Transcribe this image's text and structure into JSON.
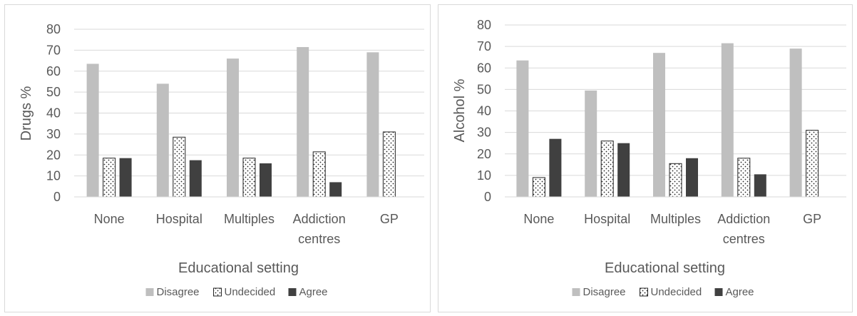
{
  "chart_data": [
    {
      "type": "bar",
      "categories": [
        [
          "None"
        ],
        [
          "Hospital"
        ],
        [
          "Multiples"
        ],
        [
          "Addiction",
          "centres"
        ],
        [
          "GP"
        ]
      ],
      "series": [
        {
          "name": "Disagree",
          "values": [
            63.5,
            54,
            66,
            71.5,
            69
          ],
          "color": "#bfbfbf",
          "pattern": "solid"
        },
        {
          "name": "Undecided",
          "values": [
            18.5,
            28.5,
            18.5,
            21.5,
            31
          ],
          "color": "#ffffff",
          "pattern": "dots"
        },
        {
          "name": "Agree",
          "values": [
            18.5,
            17.5,
            16,
            7,
            0
          ],
          "color": "#404040",
          "pattern": "solid"
        }
      ],
      "xlabel": "Educational setting",
      "ylabel": "Drugs %",
      "ylim": [
        0,
        80
      ],
      "yticks": [
        0,
        10,
        20,
        30,
        40,
        50,
        60,
        70,
        80
      ],
      "grid": true,
      "legend_position": "bottom"
    },
    {
      "type": "bar",
      "categories": [
        [
          "None"
        ],
        [
          "Hospital"
        ],
        [
          "Multiples"
        ],
        [
          "Addiction",
          "centres"
        ],
        [
          "GP"
        ]
      ],
      "series": [
        {
          "name": "Disagree",
          "values": [
            63.5,
            49.5,
            67,
            71.5,
            69
          ],
          "color": "#bfbfbf",
          "pattern": "solid"
        },
        {
          "name": "Undecided",
          "values": [
            9,
            26,
            15.5,
            18,
            31
          ],
          "color": "#ffffff",
          "pattern": "dots"
        },
        {
          "name": "Agree",
          "values": [
            27,
            25,
            18,
            10.5,
            0
          ],
          "color": "#404040",
          "pattern": "solid"
        }
      ],
      "xlabel": "Educational setting",
      "ylabel": "Alcohol %",
      "ylim": [
        0,
        80
      ],
      "yticks": [
        0,
        10,
        20,
        30,
        40,
        50,
        60,
        70,
        80
      ],
      "grid": true,
      "legend_position": "bottom"
    }
  ]
}
